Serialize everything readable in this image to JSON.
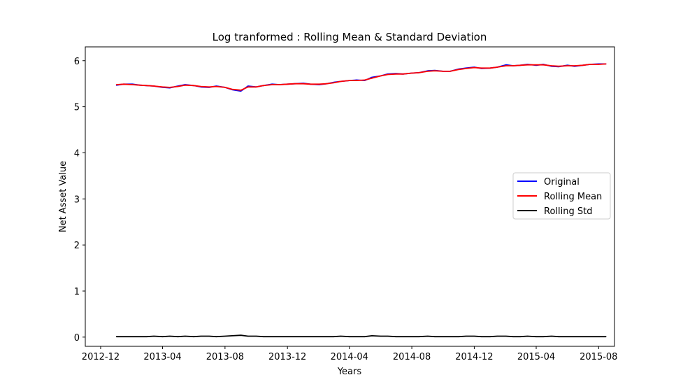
{
  "chart_data": {
    "type": "line",
    "title": "Log tranformed : Rolling Mean & Standard Deviation",
    "xlabel": "Years",
    "ylabel": "Net Asset Value",
    "xlim": [
      "2012-11-01",
      "2015-09-01"
    ],
    "ylim": [
      -0.2,
      6.3
    ],
    "x_ticks": [
      "2012-12",
      "2013-04",
      "2013-08",
      "2013-12",
      "2014-04",
      "2014-08",
      "2014-12",
      "2015-04",
      "2015-08"
    ],
    "y_ticks": [
      0,
      1,
      2,
      3,
      4,
      5,
      6
    ],
    "grid": false,
    "legend": {
      "position": "center-right"
    },
    "x": [
      "2013-01-01",
      "2013-01-15",
      "2013-02-01",
      "2013-02-15",
      "2013-03-01",
      "2013-03-15",
      "2013-04-01",
      "2013-04-15",
      "2013-05-01",
      "2013-05-15",
      "2013-06-01",
      "2013-06-15",
      "2013-07-01",
      "2013-07-15",
      "2013-08-01",
      "2013-08-15",
      "2013-09-01",
      "2013-09-15",
      "2013-10-01",
      "2013-10-15",
      "2013-11-01",
      "2013-11-15",
      "2013-12-01",
      "2013-12-15",
      "2014-01-01",
      "2014-01-15",
      "2014-02-01",
      "2014-02-15",
      "2014-03-01",
      "2014-03-15",
      "2014-04-01",
      "2014-04-15",
      "2014-05-01",
      "2014-05-15",
      "2014-06-01",
      "2014-06-15",
      "2014-07-01",
      "2014-07-15",
      "2014-08-01",
      "2014-08-15",
      "2014-09-01",
      "2014-09-15",
      "2014-10-01",
      "2014-10-15",
      "2014-11-01",
      "2014-11-15",
      "2014-12-01",
      "2014-12-15",
      "2015-01-01",
      "2015-01-15",
      "2015-02-01",
      "2015-02-15",
      "2015-03-01",
      "2015-03-15",
      "2015-04-01",
      "2015-04-15",
      "2015-05-01",
      "2015-05-15",
      "2015-06-01",
      "2015-06-15",
      "2015-07-01",
      "2015-07-15",
      "2015-08-01",
      "2015-08-15"
    ],
    "series": [
      {
        "name": "Original",
        "color": "#0000ff",
        "values": [
          5.47,
          5.49,
          5.49,
          5.47,
          5.46,
          5.45,
          5.42,
          5.41,
          5.45,
          5.48,
          5.46,
          5.43,
          5.42,
          5.45,
          5.42,
          5.37,
          5.34,
          5.45,
          5.43,
          5.46,
          5.49,
          5.48,
          5.49,
          5.5,
          5.51,
          5.49,
          5.48,
          5.5,
          5.53,
          5.55,
          5.57,
          5.58,
          5.57,
          5.64,
          5.67,
          5.71,
          5.72,
          5.71,
          5.73,
          5.74,
          5.78,
          5.79,
          5.77,
          5.77,
          5.82,
          5.84,
          5.86,
          5.83,
          5.84,
          5.86,
          5.91,
          5.89,
          5.9,
          5.92,
          5.9,
          5.92,
          5.88,
          5.87,
          5.9,
          5.88,
          5.9,
          5.92,
          5.93,
          5.93
        ]
      },
      {
        "name": "Rolling Mean",
        "color": "#ff0000",
        "values": [
          5.48,
          5.49,
          5.48,
          5.47,
          5.46,
          5.45,
          5.43,
          5.42,
          5.44,
          5.47,
          5.46,
          5.44,
          5.43,
          5.44,
          5.42,
          5.38,
          5.36,
          5.43,
          5.43,
          5.46,
          5.48,
          5.48,
          5.49,
          5.5,
          5.5,
          5.49,
          5.49,
          5.5,
          5.52,
          5.55,
          5.57,
          5.57,
          5.58,
          5.62,
          5.67,
          5.7,
          5.71,
          5.71,
          5.73,
          5.74,
          5.77,
          5.78,
          5.77,
          5.77,
          5.81,
          5.83,
          5.85,
          5.84,
          5.84,
          5.86,
          5.89,
          5.89,
          5.9,
          5.91,
          5.91,
          5.91,
          5.89,
          5.88,
          5.89,
          5.89,
          5.9,
          5.92,
          5.92,
          5.93
        ]
      },
      {
        "name": "Rolling Std",
        "color": "#000000",
        "values": [
          0.01,
          0.01,
          0.01,
          0.01,
          0.01,
          0.02,
          0.01,
          0.02,
          0.01,
          0.02,
          0.01,
          0.02,
          0.02,
          0.01,
          0.02,
          0.03,
          0.04,
          0.02,
          0.02,
          0.01,
          0.01,
          0.01,
          0.01,
          0.01,
          0.01,
          0.01,
          0.01,
          0.01,
          0.01,
          0.02,
          0.01,
          0.01,
          0.01,
          0.03,
          0.02,
          0.02,
          0.01,
          0.01,
          0.01,
          0.01,
          0.02,
          0.01,
          0.01,
          0.01,
          0.01,
          0.02,
          0.02,
          0.01,
          0.01,
          0.02,
          0.02,
          0.01,
          0.01,
          0.02,
          0.01,
          0.01,
          0.02,
          0.01,
          0.01,
          0.01,
          0.01,
          0.01,
          0.01,
          0.01
        ]
      }
    ]
  }
}
